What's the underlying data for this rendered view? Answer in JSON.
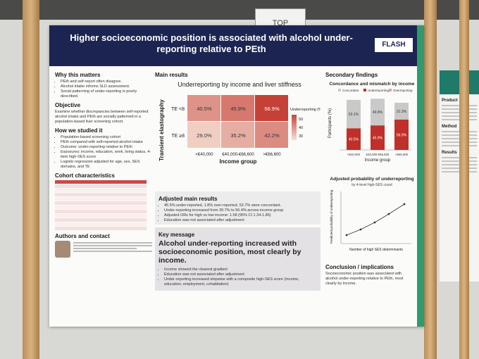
{
  "sign": "TOP",
  "header": {
    "title": "Higher socioeconomic position is associated with alcohol under-reporting relative to PEth",
    "logo": "FLASH"
  },
  "left": {
    "why": {
      "heading": "Why this matters",
      "bullets": [
        "PEth and self-report often disagree.",
        "Alcohol intake informs SLD assessment.",
        "Social patterning of under-reporting is poorly described."
      ]
    },
    "objective": {
      "heading": "Objective",
      "text": "Examine whether discrepancies between self-reported alcohol intake and PEth are socially patterned in a population-based liver screening cohort."
    },
    "how": {
      "heading": "How we studied it",
      "bullets": [
        "Population-based screening cohort",
        "PEth compared with self-reported alcohol intake",
        "Outcome: under-reporting relative to PEth",
        "Exposures: income, education, work, living status, 4-item high-SES score",
        "Logistic regression adjusted for age, sex, SES domains, and TE"
      ]
    },
    "cohort": {
      "heading": "Cohort characteristics"
    },
    "authors": {
      "heading": "Authors and contact"
    }
  },
  "main": {
    "heading": "Main results",
    "heatmap": {
      "title": "Underreporting by income and liver stiffness",
      "y_label": "Transient elastography",
      "x_label": "Income group",
      "rows": [
        "TE <8",
        "TE ≥8"
      ],
      "columns": [
        "<€40,000",
        "€40,000-€66,600",
        ">€66,600"
      ],
      "values": [
        [
          40.5,
          45.9,
          56.9
        ],
        [
          29.0,
          35.2,
          42.2
        ]
      ],
      "value_labels": [
        [
          "40.5%",
          "45.9%",
          "56.9%"
        ],
        [
          "29.0%",
          "35.2%",
          "42.2%"
        ]
      ],
      "legend_title": "Underreporting (%)",
      "legend_ticks": [
        50,
        40,
        30
      ]
    }
  },
  "adjusted": {
    "heading": "Adjusted main results",
    "bullets": [
      "45.5% under-reported, 1.8% over-reported, 52.7% were concordant.",
      "Under-reporting increased from 39.7% to 56.4% across income group",
      "Adjusted ORs for high vs low income: 1.58 (95% CI 1.34-1.86)",
      "Education was not associated after adjustment"
    ]
  },
  "key": {
    "heading": "Key message",
    "text": "Alcohol under-reporting increased with socioeconomic position, most clearly by income.",
    "bullets": [
      "Income showed the clearest gradient",
      "Education was not associated after adjustment",
      "Under-reporting increased stepwise with a composite high-SES score (income, education, employment, cohabitation)"
    ]
  },
  "secondary": {
    "heading": "Secondary findings",
    "chart1": {
      "title": "Concordance and mismatch by income",
      "legend": [
        "Concordant",
        "Underreporting",
        "Overreporting"
      ],
      "y_label": "Participants (%)",
      "x_label": "Income group",
      "categories": [
        "<€40,000",
        "€40,000-€66,600",
        ">€66,600"
      ],
      "concordant": [
        53.1,
        49.8,
        31.3
      ],
      "concordant_labels": [
        "53.1%",
        "49.8%",
        "31.3%"
      ],
      "underreporting": [
        40.5,
        45.9,
        56.9
      ],
      "underreporting_labels": [
        "40.5%",
        "45.9%",
        "56.9%"
      ]
    },
    "chart2": {
      "title": "Adjusted probability of underreporting",
      "subtitle": "by 4-level high-SES count",
      "x_label": "Number of high SES determinants",
      "y_label": "Predicted probability of underreporting"
    }
  },
  "conclusion": {
    "heading": "Conclusion / implications",
    "text": "Socioeconomic position was associated with alcohol under-reporting relative to PEth, most clearly by income."
  },
  "side_poster": {
    "headings": [
      "Product",
      "Method",
      "Results"
    ]
  }
}
